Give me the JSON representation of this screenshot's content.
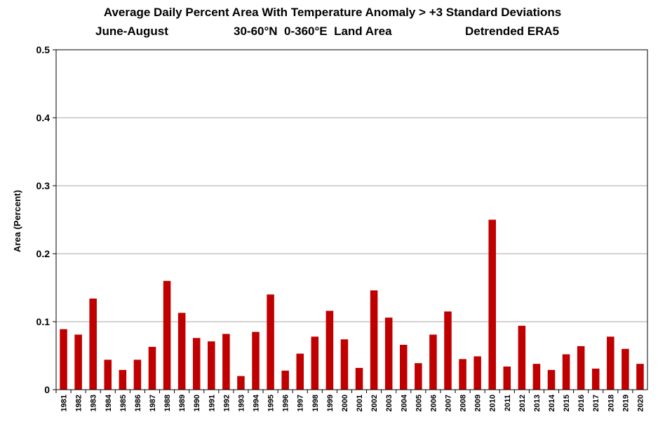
{
  "chart_data": {
    "type": "bar",
    "title": "Average Daily Percent Area With Temperature Anomaly > +3 Standard Deviations",
    "subtitle": {
      "season": "June-August",
      "region": "30-60°N  0-360°E  Land Area",
      "dataset": "Detrended ERA5"
    },
    "xlabel": "",
    "ylabel": "Area (Percent)",
    "ylim": [
      0,
      0.5
    ],
    "yticks": [
      "0",
      "0.1",
      "0.2",
      "0.3",
      "0.4",
      "0.5"
    ],
    "grid": true,
    "legend": "none",
    "bar_color": "#c00000",
    "categories": [
      "1981",
      "1982",
      "1983",
      "1984",
      "1985",
      "1986",
      "1987",
      "1988",
      "1989",
      "1990",
      "1991",
      "1992",
      "1993",
      "1994",
      "1995",
      "1996",
      "1997",
      "1998",
      "1999",
      "2000",
      "2001",
      "2002",
      "2003",
      "2004",
      "2005",
      "2006",
      "2007",
      "2008",
      "2009",
      "2010",
      "2011",
      "2012",
      "2013",
      "2014",
      "2015",
      "2016",
      "2017",
      "2018",
      "2019",
      "2020"
    ],
    "values": [
      0.089,
      0.081,
      0.134,
      0.044,
      0.029,
      0.044,
      0.063,
      0.16,
      0.113,
      0.076,
      0.071,
      0.082,
      0.02,
      0.085,
      0.14,
      0.028,
      0.053,
      0.078,
      0.116,
      0.074,
      0.032,
      0.146,
      0.106,
      0.066,
      0.039,
      0.081,
      0.115,
      0.045,
      0.049,
      0.25,
      0.034,
      0.094,
      0.038,
      0.029,
      0.052,
      0.064,
      0.031,
      0.078,
      0.06,
      0.038
    ]
  }
}
